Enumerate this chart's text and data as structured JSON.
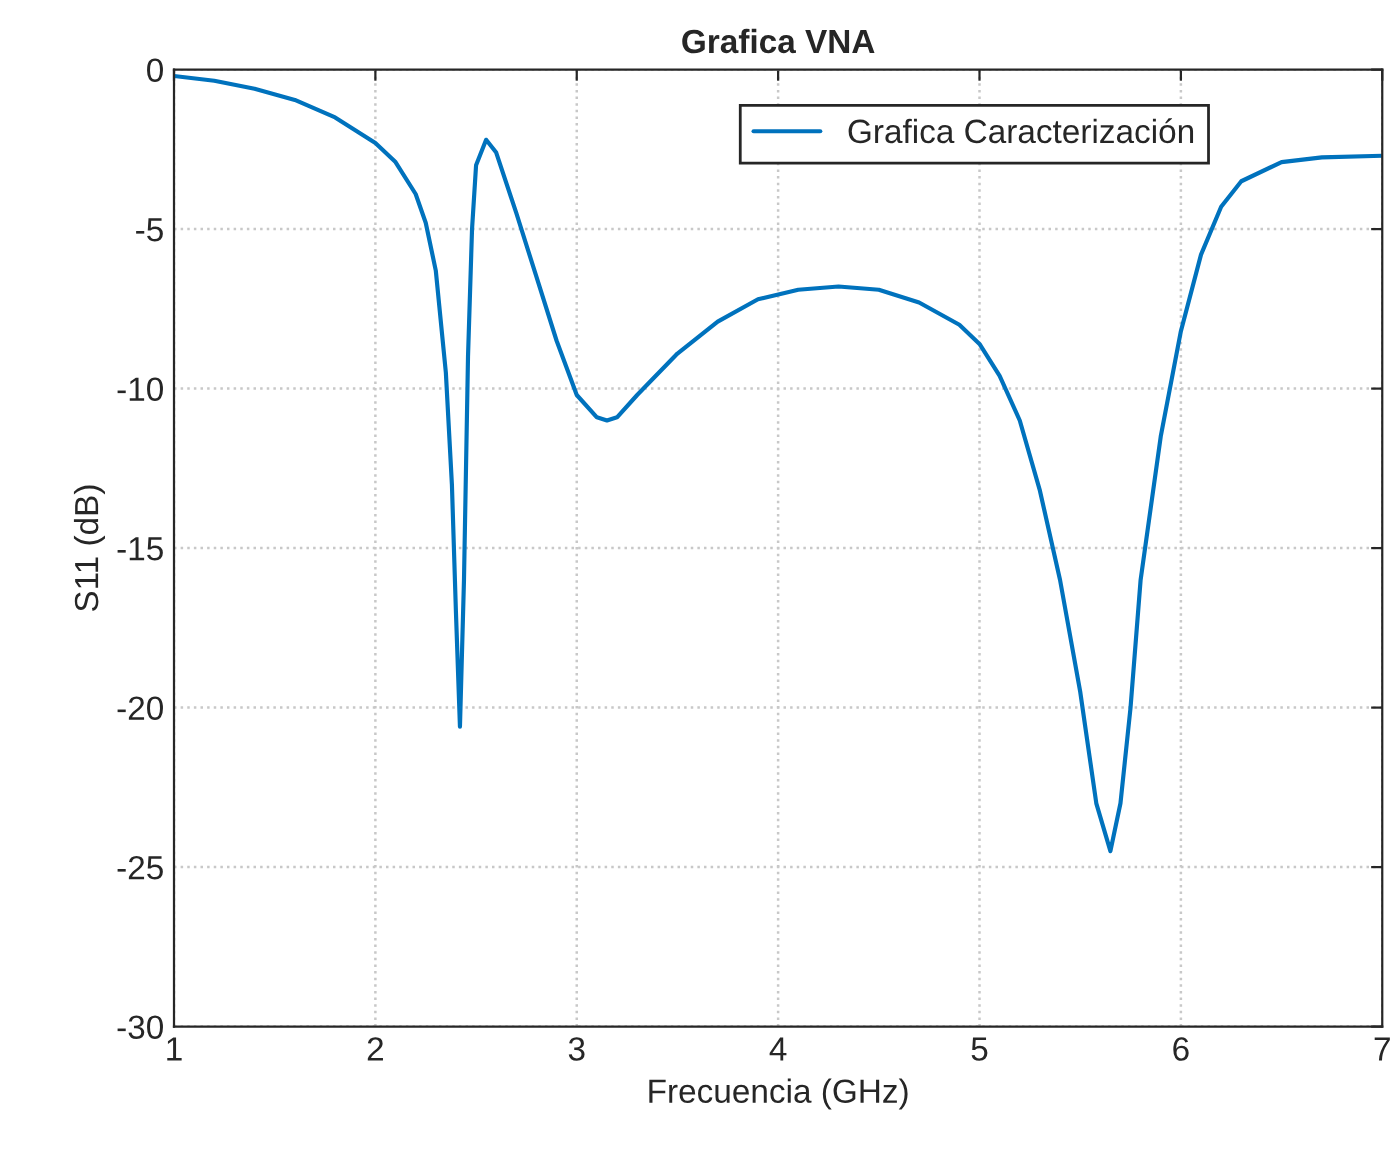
{
  "chart_data": {
    "type": "line",
    "title": "Grafica VNA",
    "xlabel": "Frecuencia (GHz)",
    "ylabel": "S11 (dB)",
    "xlim": [
      1,
      7
    ],
    "xticks": [
      1,
      2,
      3,
      4,
      5,
      6,
      7
    ],
    "ylim": [
      -30,
      0
    ],
    "yticks": [
      -30,
      -25,
      -20,
      -15,
      -10,
      -5,
      0
    ],
    "grid": true,
    "legend": "top right",
    "line_style": "solid",
    "marker": "none",
    "series": [
      {
        "name": "Grafica Caracterización",
        "color": "#0072bd",
        "x": [
          1.0,
          1.2,
          1.4,
          1.6,
          1.8,
          2.0,
          2.1,
          2.2,
          2.25,
          2.3,
          2.35,
          2.38,
          2.4,
          2.42,
          2.44,
          2.46,
          2.48,
          2.5,
          2.55,
          2.6,
          2.7,
          2.8,
          2.9,
          3.0,
          3.1,
          3.15,
          3.2,
          3.3,
          3.5,
          3.7,
          3.9,
          4.1,
          4.3,
          4.5,
          4.7,
          4.9,
          5.0,
          5.1,
          5.2,
          5.3,
          5.4,
          5.5,
          5.58,
          5.65,
          5.7,
          5.75,
          5.8,
          5.9,
          6.0,
          6.1,
          6.2,
          6.3,
          6.5,
          6.7,
          7.0
        ],
        "values": [
          -0.2,
          -0.35,
          -0.6,
          -0.95,
          -1.5,
          -2.3,
          -2.9,
          -3.9,
          -4.8,
          -6.3,
          -9.5,
          -13,
          -17,
          -20.6,
          -16,
          -9,
          -5,
          -3,
          -2.2,
          -2.6,
          -4.5,
          -6.5,
          -8.5,
          -10.2,
          -10.9,
          -11.0,
          -10.9,
          -10.2,
          -8.9,
          -7.9,
          -7.2,
          -6.9,
          -6.8,
          -6.9,
          -7.3,
          -8.0,
          -8.6,
          -9.6,
          -11,
          -13.2,
          -16,
          -19.5,
          -23,
          -24.5,
          -23,
          -20,
          -16,
          -11.5,
          -8.2,
          -5.8,
          -4.3,
          -3.5,
          -2.9,
          -2.75,
          -2.7
        ]
      }
    ]
  }
}
